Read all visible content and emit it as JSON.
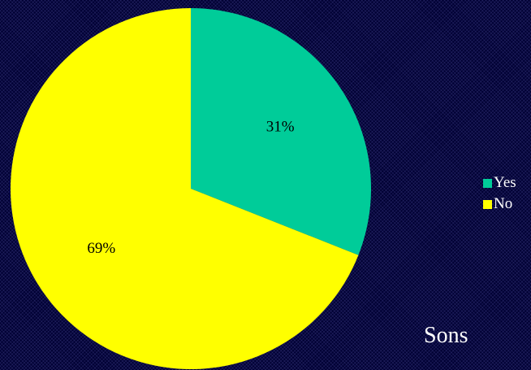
{
  "colors": {
    "background": "#000033",
    "yes": "#00CC99",
    "no": "#FFFF00",
    "label_text": "#000000",
    "legend_text": "#FFFFFF"
  },
  "caption": "Sons",
  "legend": {
    "placement": "right",
    "items": [
      {
        "label": "Yes",
        "color": "#00CC99"
      },
      {
        "label": "No",
        "color": "#FFFF00"
      }
    ]
  },
  "chart_data": {
    "type": "pie",
    "start": "12 o'clock, clockwise",
    "slices": [
      {
        "name": "Yes",
        "value": 31,
        "label": "31%",
        "color": "#00CC99"
      },
      {
        "name": "No",
        "value": 69,
        "label": "69%",
        "color": "#FFFF00"
      }
    ]
  }
}
